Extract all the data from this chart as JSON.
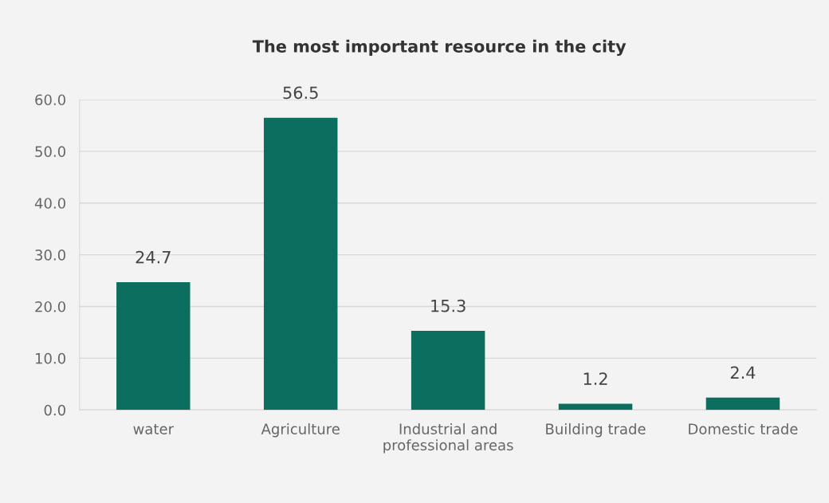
{
  "chart_data": {
    "type": "bar",
    "title": "The most important resource in the city",
    "categories": [
      "water",
      "Agriculture",
      "Industrial and\nprofessional areas",
      "Building trade",
      "Domestic trade"
    ],
    "values": [
      24.7,
      56.5,
      15.3,
      1.2,
      2.4
    ],
    "color": "#0b6e5e",
    "ylim": [
      0,
      60
    ],
    "yticks": [
      {
        "value": 0,
        "label": "0.0"
      },
      {
        "value": 10,
        "label": "10.0"
      },
      {
        "value": 20,
        "label": "20.0"
      },
      {
        "value": 30,
        "label": "30.0"
      },
      {
        "value": 40,
        "label": "40.0"
      },
      {
        "value": 50,
        "label": "50.0"
      },
      {
        "value": 60,
        "label": "60.0"
      }
    ],
    "grid": "y",
    "data_labels": true
  }
}
